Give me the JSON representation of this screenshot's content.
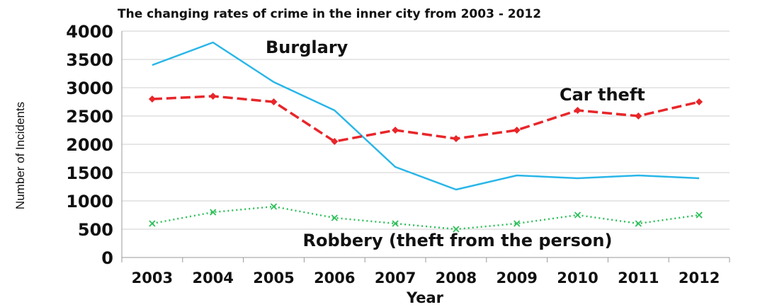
{
  "chart_data": {
    "type": "line",
    "title": "The changing rates of crime in the inner city from 2003 - 2012",
    "xlabel": "Year",
    "ylabel": "Number of Incidents",
    "categories": [
      "2003",
      "2004",
      "2005",
      "2006",
      "2007",
      "2008",
      "2009",
      "2010",
      "2011",
      "2012"
    ],
    "ylim": [
      0,
      4000
    ],
    "yticks": [
      "0",
      "500",
      "1000",
      "1500",
      "2000",
      "2500",
      "3000",
      "3500",
      "4000"
    ],
    "grid": true,
    "series": [
      {
        "name": "Burglary",
        "color": "#29b6e8",
        "style": "solid",
        "values": [
          3400,
          3800,
          3100,
          2600,
          1600,
          1200,
          1450,
          1400,
          1450,
          1400
        ]
      },
      {
        "name": "Car theft",
        "color": "#e8262a",
        "style": "dashed-diamond",
        "values": [
          2800,
          2850,
          2750,
          2050,
          2250,
          2100,
          2250,
          2600,
          2500,
          2750
        ]
      },
      {
        "name": "Robbery (theft from the person)",
        "color": "#2fbf5a",
        "style": "dotted-x",
        "values": [
          600,
          800,
          900,
          700,
          600,
          500,
          600,
          750,
          600,
          750
        ]
      }
    ]
  }
}
